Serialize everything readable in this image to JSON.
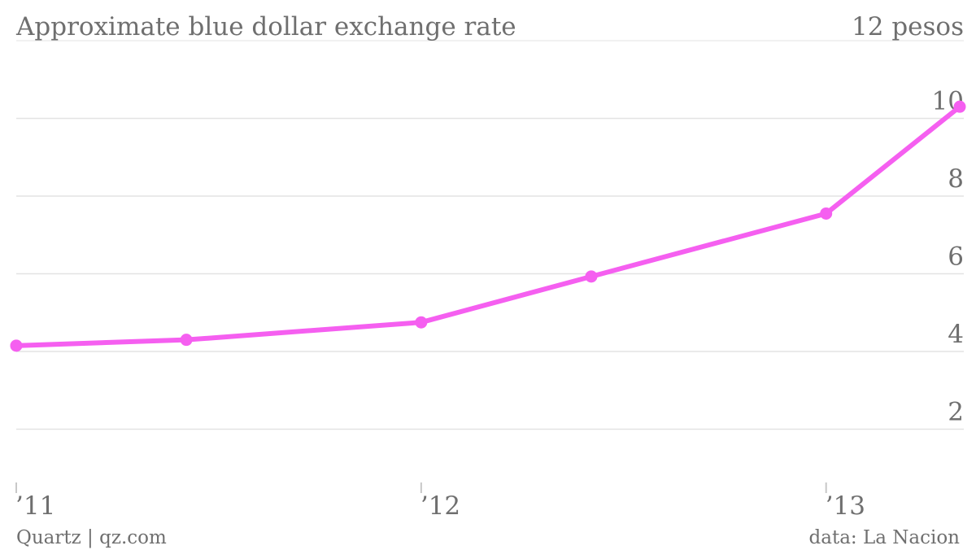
{
  "chart_data": {
    "type": "line",
    "title": "Approximate blue dollar exchange rate",
    "y_top_label": "12 pesos",
    "ylim": [
      0,
      12
    ],
    "y_ticks": [
      2,
      4,
      6,
      8,
      10
    ],
    "x_ticks": [
      {
        "label": "’11",
        "value": 2011.0
      },
      {
        "label": "’12",
        "value": 2012.0
      },
      {
        "label": "’13",
        "value": 2013.0
      }
    ],
    "x_range": [
      2011.0,
      2013.33
    ],
    "grid": true,
    "series": [
      {
        "color": "#f55ff0",
        "points": [
          {
            "x": 2011.0,
            "y": 4.15
          },
          {
            "x": 2011.42,
            "y": 4.3
          },
          {
            "x": 2012.0,
            "y": 4.75
          },
          {
            "x": 2012.42,
            "y": 5.93
          },
          {
            "x": 2013.0,
            "y": 7.55
          },
          {
            "x": 2013.33,
            "y": 10.3
          }
        ]
      }
    ]
  },
  "footer": {
    "credit": "Quartz | qz.com",
    "source": "data: La Nacion"
  }
}
